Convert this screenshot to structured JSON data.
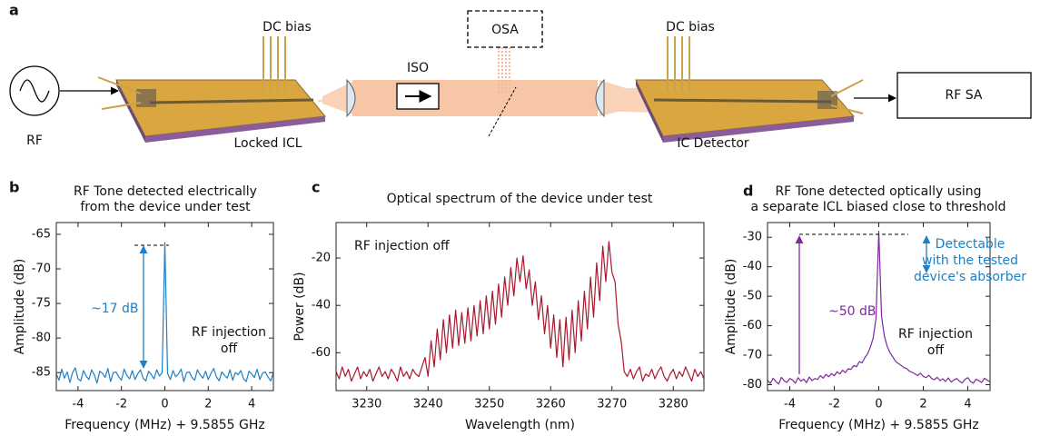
{
  "panel_labels": [
    "a",
    "b",
    "c",
    "d"
  ],
  "diagram": {
    "rf_source": "RF",
    "dc_bias_left": "DC bias",
    "dc_bias_right": "DC bias",
    "osa": "OSA",
    "iso": "ISO",
    "rf_sa": "RF SA",
    "laser_label": "Locked ICL",
    "detector_label": "IC Detector"
  },
  "chart_data": [
    {
      "type": "line",
      "title": [
        "RF Tone detected electrically",
        "from the device under test"
      ],
      "xlabel": "Frequency (MHz) + 9.5855 GHz",
      "ylabel": "Amplitude (dB)",
      "xlim": [
        -5,
        5
      ],
      "ylim": [
        -87.6,
        -63.3
      ],
      "xticks": [
        -4,
        -2,
        0,
        2,
        4
      ],
      "yticks": [
        -85,
        -80,
        -75,
        -70,
        -65
      ],
      "color": "#1f7fc4",
      "annotations": [
        [
          "~17 dB"
        ],
        [
          "RF injection",
          "off"
        ]
      ],
      "x": [
        -5,
        -4.875,
        -4.75,
        -4.625,
        -4.5,
        -4.375,
        -4.25,
        -4.125,
        -4,
        -3.875,
        -3.75,
        -3.625,
        -3.5,
        -3.375,
        -3.25,
        -3.125,
        -3,
        -2.875,
        -2.75,
        -2.625,
        -2.5,
        -2.375,
        -2.25,
        -2.125,
        -2,
        -1.875,
        -1.75,
        -1.625,
        -1.5,
        -1.375,
        -1.25,
        -1.125,
        -1,
        -0.875,
        -0.75,
        -0.625,
        -0.5,
        -0.375,
        -0.25,
        -0.125,
        0,
        0.125,
        0.25,
        0.375,
        0.5,
        0.625,
        0.75,
        0.875,
        1,
        1.125,
        1.25,
        1.375,
        1.5,
        1.625,
        1.75,
        1.875,
        2,
        2.125,
        2.25,
        2.375,
        2.5,
        2.625,
        2.75,
        2.875,
        3,
        3.125,
        3.25,
        3.375,
        3.5,
        3.625,
        3.75,
        3.875,
        4,
        4.125,
        4.25,
        4.375,
        4.5,
        4.625,
        4.75,
        4.875,
        5
      ],
      "values": [
        -85.2,
        -86.1,
        -84.5,
        -85.8,
        -84.9,
        -86.4,
        -85.0,
        -84.3,
        -85.9,
        -86.2,
        -84.7,
        -85.5,
        -86.0,
        -84.6,
        -85.3,
        -86.5,
        -84.8,
        -85.1,
        -85.7,
        -84.4,
        -86.3,
        -85.0,
        -84.9,
        -85.6,
        -86.1,
        -84.5,
        -85.4,
        -85.9,
        -84.7,
        -86.0,
        -85.2,
        -84.6,
        -85.8,
        -86.2,
        -84.8,
        -85.3,
        -85.9,
        -84.6,
        -85.5,
        -85.0,
        -66.2,
        -85.1,
        -86.0,
        -84.7,
        -85.6,
        -85.2,
        -84.5,
        -86.3,
        -85.0,
        -84.9,
        -85.7,
        -86.1,
        -84.6,
        -85.3,
        -85.8,
        -84.8,
        -86.0,
        -85.1,
        -84.4,
        -85.6,
        -86.2,
        -84.9,
        -85.4,
        -85.8,
        -84.6,
        -86.1,
        -85.0,
        -85.3,
        -84.7,
        -85.9,
        -86.3,
        -84.8,
        -85.2,
        -85.7,
        -84.5,
        -86.0,
        -85.1,
        -84.9,
        -85.6,
        -86.2,
        -85.0
      ]
    },
    {
      "type": "line",
      "title": [
        "Optical spectrum of the device under test"
      ],
      "xlabel": "Wavelength (nm)",
      "ylabel": "Power (dB)",
      "xlim": [
        3225,
        3285
      ],
      "ylim": [
        -76,
        -5
      ],
      "xticks": [
        3230,
        3240,
        3250,
        3260,
        3270,
        3280
      ],
      "yticks": [
        -60,
        -40,
        -20
      ],
      "color": "#a8182e",
      "annotations": [
        [
          "RF injection off"
        ]
      ],
      "x": [
        3225,
        3225.5,
        3226,
        3226.5,
        3227,
        3227.5,
        3228,
        3228.5,
        3229,
        3229.5,
        3230,
        3230.5,
        3231,
        3231.5,
        3232,
        3232.5,
        3233,
        3233.5,
        3234,
        3234.5,
        3235,
        3235.5,
        3236,
        3236.5,
        3237,
        3237.5,
        3238,
        3238.5,
        3239,
        3239.5,
        3240,
        3240.5,
        3241,
        3241.5,
        3242,
        3242.5,
        3243,
        3243.5,
        3244,
        3244.5,
        3245,
        3245.5,
        3246,
        3246.5,
        3247,
        3247.5,
        3248,
        3248.5,
        3249,
        3249.5,
        3250,
        3250.5,
        3251,
        3251.5,
        3252,
        3252.5,
        3253,
        3253.5,
        3254,
        3254.5,
        3255,
        3255.5,
        3256,
        3256.5,
        3257,
        3257.5,
        3258,
        3258.5,
        3259,
        3259.5,
        3260,
        3260.5,
        3261,
        3261.5,
        3262,
        3262.5,
        3263,
        3263.5,
        3264,
        3264.5,
        3265,
        3265.5,
        3266,
        3266.5,
        3267,
        3267.5,
        3268,
        3268.5,
        3269,
        3269.5,
        3270,
        3270.5,
        3271,
        3271.5,
        3272,
        3272.5,
        3273,
        3273.5,
        3274,
        3274.5,
        3275,
        3275.5,
        3276,
        3276.5,
        3277,
        3277.5,
        3278,
        3278.5,
        3279,
        3279.5,
        3280,
        3280.5,
        3281,
        3281.5,
        3282,
        3282.5,
        3283,
        3283.5,
        3284,
        3284.5,
        3285
      ],
      "values": [
        -68,
        -71,
        -66,
        -70,
        -67,
        -72,
        -69,
        -66,
        -71,
        -68,
        -70,
        -67,
        -72,
        -69,
        -66,
        -70,
        -68,
        -71,
        -67,
        -69,
        -72,
        -66,
        -70,
        -68,
        -71,
        -67,
        -69,
        -70,
        -66,
        -62,
        -70,
        -55,
        -66,
        -50,
        -63,
        -46,
        -60,
        -44,
        -58,
        -42,
        -57,
        -43,
        -56,
        -41,
        -55,
        -40,
        -53,
        -38,
        -52,
        -36,
        -50,
        -34,
        -48,
        -31,
        -45,
        -28,
        -40,
        -24,
        -36,
        -20,
        -30,
        -19,
        -33,
        -25,
        -40,
        -30,
        -46,
        -36,
        -52,
        -40,
        -58,
        -44,
        -62,
        -46,
        -66,
        -45,
        -63,
        -42,
        -60,
        -38,
        -55,
        -34,
        -50,
        -28,
        -45,
        -22,
        -38,
        -15,
        -30,
        -13,
        -26,
        -30,
        -48,
        -55,
        -68,
        -70,
        -67,
        -71,
        -68,
        -66,
        -72,
        -69,
        -70,
        -67,
        -71,
        -68,
        -66,
        -70,
        -72,
        -69,
        -67,
        -71,
        -68,
        -70,
        -66,
        -69,
        -72,
        -67,
        -70,
        -68,
        -71
      ]
    },
    {
      "type": "line",
      "title": [
        "RF Tone detected optically using",
        "a separate ICL biased close to threshold"
      ],
      "xlabel": "Frequency (MHz) + 9.5855 GHz",
      "ylabel": "Amplitude (dB)",
      "xlim": [
        -5,
        5
      ],
      "ylim": [
        -82,
        -25
      ],
      "xticks": [
        -4,
        -2,
        0,
        2,
        4
      ],
      "yticks": [
        -80,
        -70,
        -60,
        -50,
        -40,
        -30
      ],
      "color": "#7b2a9c",
      "annotations": [
        [
          "~50 dB"
        ],
        [
          "Detectable",
          "with the tested",
          "device's absorber"
        ],
        [
          "RF injection",
          "off"
        ]
      ],
      "x": [
        -5,
        -4.875,
        -4.75,
        -4.625,
        -4.5,
        -4.375,
        -4.25,
        -4.125,
        -4,
        -3.875,
        -3.75,
        -3.625,
        -3.5,
        -3.375,
        -3.25,
        -3.125,
        -3,
        -2.875,
        -2.75,
        -2.625,
        -2.5,
        -2.375,
        -2.25,
        -2.125,
        -2,
        -1.875,
        -1.75,
        -1.625,
        -1.5,
        -1.375,
        -1.25,
        -1.125,
        -1,
        -0.875,
        -0.75,
        -0.625,
        -0.5,
        -0.375,
        -0.25,
        -0.125,
        0,
        0.125,
        0.25,
        0.375,
        0.5,
        0.625,
        0.75,
        0.875,
        1,
        1.125,
        1.25,
        1.375,
        1.5,
        1.625,
        1.75,
        1.875,
        2,
        2.125,
        2.25,
        2.375,
        2.5,
        2.625,
        2.75,
        2.875,
        3,
        3.125,
        3.25,
        3.375,
        3.5,
        3.625,
        3.75,
        3.875,
        4,
        4.125,
        4.25,
        4.375,
        4.5,
        4.625,
        4.75,
        4.875,
        5
      ],
      "values": [
        -78.5,
        -79.6,
        -77.8,
        -78.9,
        -79.8,
        -77.5,
        -78.7,
        -79.2,
        -77.9,
        -78.4,
        -79.5,
        -77.6,
        -78.8,
        -78.1,
        -79.3,
        -77.4,
        -78.6,
        -77.9,
        -78.2,
        -76.9,
        -77.8,
        -76.5,
        -77.3,
        -76.2,
        -77.0,
        -75.6,
        -76.4,
        -75.1,
        -75.9,
        -74.6,
        -74.8,
        -73.5,
        -73.9,
        -72.2,
        -72.6,
        -70.8,
        -69.5,
        -67.2,
        -64.1,
        -57.5,
        -28.0,
        -56.8,
        -63.5,
        -66.9,
        -69.1,
        -70.5,
        -72.0,
        -72.8,
        -73.4,
        -74.2,
        -74.5,
        -75.4,
        -75.8,
        -76.3,
        -76.9,
        -76.1,
        -77.2,
        -77.6,
        -76.8,
        -77.9,
        -78.3,
        -77.5,
        -78.6,
        -78.0,
        -78.9,
        -77.7,
        -79.1,
        -78.4,
        -77.9,
        -78.8,
        -79.4,
        -78.2,
        -77.6,
        -78.9,
        -79.5,
        -78.1,
        -78.7,
        -79.2,
        -77.8,
        -78.5,
        -79.0
      ]
    }
  ]
}
